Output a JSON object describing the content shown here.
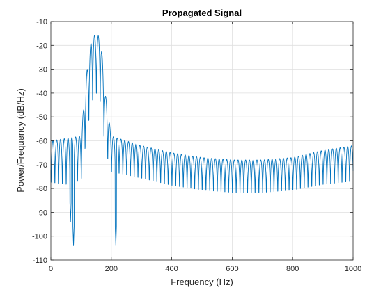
{
  "chart_data": {
    "type": "line",
    "title": "Propagated Signal",
    "xlabel": "Frequency (Hz)",
    "ylabel": "Power/Frequency (dB/Hz)",
    "xlim": [
      0,
      1000
    ],
    "ylim": [
      -110,
      -10
    ],
    "xticks": [
      0,
      200,
      400,
      600,
      800,
      1000
    ],
    "yticks": [
      -110,
      -100,
      -90,
      -80,
      -70,
      -60,
      -50,
      -40,
      -30,
      -20,
      -10
    ],
    "grid": true,
    "line_color": "#0072BD",
    "series": [
      {
        "name": "",
        "x": [
          0,
          50,
          100,
          120,
          135,
          150,
          165,
          180,
          200,
          300,
          400,
          500,
          600,
          700,
          800,
          900,
          1000
        ],
        "upper_envelope_db": [
          -60,
          -59,
          -58,
          -30,
          -17,
          -15,
          -17,
          -40,
          -58,
          -62,
          -65,
          -67,
          -68,
          -68,
          -67,
          -64,
          -62
        ],
        "lower_envelope_db": [
          -88,
          -90,
          -88,
          -72,
          -60,
          -55,
          -60,
          -78,
          -82,
          -84,
          -87,
          -89,
          -90,
          -90,
          -89,
          -87,
          -86
        ],
        "deep_notches": [
          {
            "x": 65,
            "y": -94
          },
          {
            "x": 75,
            "y": -104
          },
          {
            "x": 215,
            "y": -104
          }
        ]
      }
    ]
  }
}
